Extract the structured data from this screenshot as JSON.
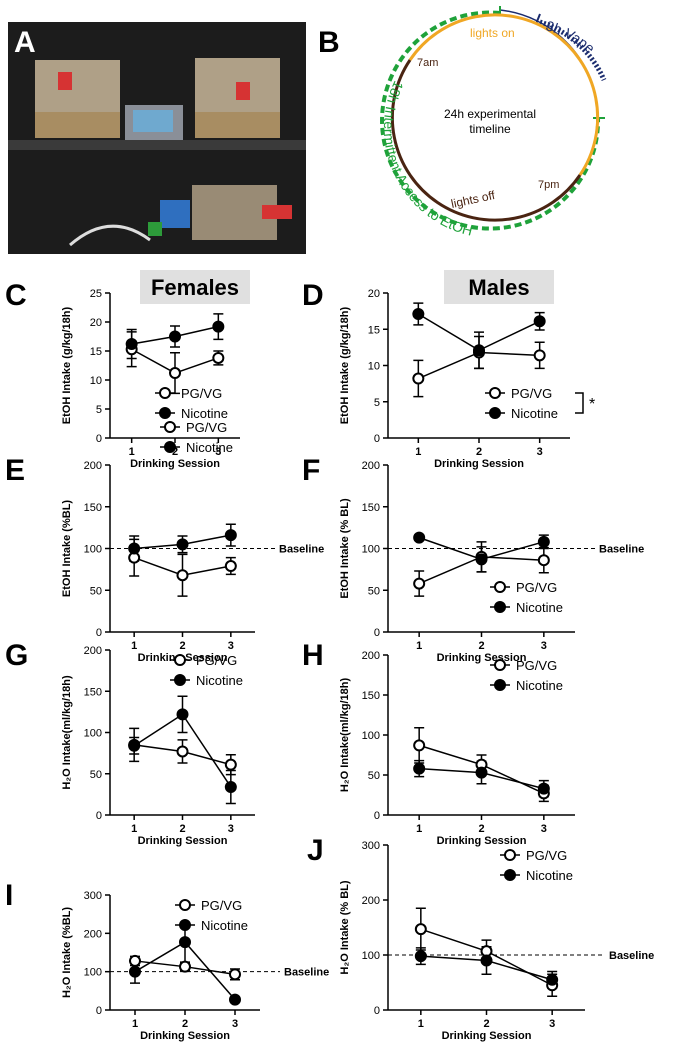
{
  "figure": {
    "panel_a": {
      "label": "A"
    },
    "panel_b": {
      "label": "B",
      "vape": "3h Vape",
      "lights_on": "lights on",
      "am": "7am",
      "center": [
        "24h experimental",
        "timeline"
      ],
      "pm": "7pm",
      "lights_off": "lights off",
      "access": "18h Intermittent Access to EtOH"
    }
  },
  "chart_data": [
    {
      "type": "line",
      "panel": "C",
      "title": "Females",
      "ylabel": "EtOH Intake (g/kg/18h)",
      "xlabel": "Drinking Session",
      "categories": [
        "1",
        "2",
        "3"
      ],
      "series": [
        {
          "name": "PG/VG",
          "color": "#000000",
          "marker": "open",
          "values": [
            15.3,
            11.2,
            13.8
          ],
          "errors": [
            3,
            3.5,
            1.2
          ]
        },
        {
          "name": "Nicotine",
          "color": "#000000",
          "marker": "filled",
          "values": [
            16.2,
            17.5,
            19.2
          ],
          "errors": [
            2.5,
            1.8,
            2.2
          ]
        }
      ],
      "ylim": [
        0,
        25
      ],
      "yticks": [
        0,
        5,
        10,
        15,
        20,
        25
      ],
      "legend": "lower right"
    },
    {
      "type": "line",
      "panel": "D",
      "title": "Males",
      "ylabel": "EtOH Intake (g/kg/18h)",
      "xlabel": "Drinking Session",
      "categories": [
        "1",
        "2",
        "3"
      ],
      "series": [
        {
          "name": "PG/VG",
          "color": "#000000",
          "marker": "open",
          "values": [
            8.2,
            11.8,
            11.4
          ],
          "errors": [
            2.5,
            2.2,
            1.8
          ]
        },
        {
          "name": "Nicotine",
          "color": "#000000",
          "marker": "filled",
          "values": [
            17.1,
            12.1,
            16.1
          ],
          "errors": [
            1.5,
            2.5,
            1.2
          ]
        }
      ],
      "ylim": [
        0,
        20
      ],
      "yticks": [
        0,
        5,
        10,
        15,
        20
      ],
      "legend": "lower right",
      "annotation": "*"
    },
    {
      "type": "line",
      "panel": "E",
      "ylabel": "EtOH Intake (%BL)",
      "xlabel": "Drinking Session",
      "categories": [
        "1",
        "2",
        "3"
      ],
      "series": [
        {
          "name": "PG/VG",
          "color": "#000000",
          "marker": "open",
          "values": [
            89,
            68,
            79
          ],
          "errors": [
            22,
            25,
            10
          ]
        },
        {
          "name": "Nicotine",
          "color": "#000000",
          "marker": "filled",
          "values": [
            100,
            105,
            116
          ],
          "errors": [
            15,
            10,
            13
          ]
        }
      ],
      "ylim": [
        0,
        200
      ],
      "yticks": [
        0,
        50,
        100,
        150,
        200
      ],
      "legend": "above",
      "baseline": {
        "value": 100,
        "label": "Baseline"
      }
    },
    {
      "type": "line",
      "panel": "F",
      "ylabel": "EtOH Intake  (% BL)",
      "xlabel": "Drinking Session",
      "categories": [
        "1",
        "2",
        "3"
      ],
      "series": [
        {
          "name": "PG/VG",
          "color": "#000000",
          "marker": "open",
          "values": [
            58,
            90,
            86
          ],
          "errors": [
            15,
            18,
            15
          ]
        },
        {
          "name": "Nicotine",
          "color": "#000000",
          "marker": "filled",
          "values": [
            113,
            87,
            108
          ],
          "errors": [
            3,
            15,
            8
          ]
        }
      ],
      "ylim": [
        0,
        200
      ],
      "yticks": [
        0,
        50,
        100,
        150,
        200
      ],
      "legend": "lower right",
      "baseline": {
        "value": 100,
        "label": "Baseline"
      }
    },
    {
      "type": "line",
      "panel": "G",
      "ylabel": "H₂O Intake(ml/kg/18h)",
      "xlabel": "Drinking Session",
      "categories": [
        "1",
        "2",
        "3"
      ],
      "series": [
        {
          "name": "PG/VG",
          "color": "#000000",
          "marker": "open",
          "values": [
            85,
            77,
            61
          ],
          "errors": [
            20,
            14,
            12
          ]
        },
        {
          "name": "Nicotine",
          "color": "#000000",
          "marker": "filled",
          "values": [
            84,
            122,
            34
          ],
          "errors": [
            10,
            22,
            20
          ]
        }
      ],
      "ylim": [
        0,
        200
      ],
      "yticks": [
        0,
        50,
        100,
        150,
        200
      ],
      "legend": "upper right"
    },
    {
      "type": "line",
      "panel": "H",
      "ylabel": "H₂O Intake(ml/kg/18h)",
      "xlabel": "Drinking Session",
      "categories": [
        "1",
        "2",
        "3"
      ],
      "series": [
        {
          "name": "PG/VG",
          "color": "#000000",
          "marker": "open",
          "values": [
            87,
            63,
            27
          ],
          "errors": [
            22,
            12,
            10
          ]
        },
        {
          "name": "Nicotine",
          "color": "#000000",
          "marker": "filled",
          "values": [
            58,
            53,
            33
          ],
          "errors": [
            10,
            14,
            10
          ]
        }
      ],
      "ylim": [
        0,
        200
      ],
      "yticks": [
        0,
        50,
        100,
        150,
        200
      ],
      "legend": "upper right"
    },
    {
      "type": "line",
      "panel": "I",
      "ylabel": "H₂O Intake (%BL)",
      "xlabel": "Drinking Session",
      "categories": [
        "1",
        "2",
        "3"
      ],
      "series": [
        {
          "name": "PG/VG",
          "color": "#000000",
          "marker": "open",
          "values": [
            128,
            113,
            93
          ],
          "errors": [
            12,
            10,
            14
          ]
        },
        {
          "name": "Nicotine",
          "color": "#000000",
          "marker": "filled",
          "values": [
            100,
            177,
            27
          ],
          "errors": [
            30,
            52,
            6
          ]
        }
      ],
      "ylim": [
        0,
        300
      ],
      "yticks": [
        0,
        100,
        200,
        300
      ],
      "legend": "upper right",
      "baseline": {
        "value": 100,
        "label": "Baseline"
      }
    },
    {
      "type": "line",
      "panel": "J",
      "ylabel": "H₂O Intake (% BL)",
      "xlabel": "Drinking Session",
      "categories": [
        "1",
        "2",
        "3"
      ],
      "series": [
        {
          "name": "PG/VG",
          "color": "#000000",
          "marker": "open",
          "values": [
            147,
            107,
            45
          ],
          "errors": [
            38,
            20,
            20
          ]
        },
        {
          "name": "Nicotine",
          "color": "#000000",
          "marker": "filled",
          "values": [
            98,
            90,
            55
          ],
          "errors": [
            15,
            25,
            15
          ]
        }
      ],
      "ylim": [
        0,
        300
      ],
      "yticks": [
        0,
        100,
        200,
        300
      ],
      "legend": "upper right",
      "baseline": {
        "value": 100,
        "label": "Baseline"
      }
    }
  ]
}
